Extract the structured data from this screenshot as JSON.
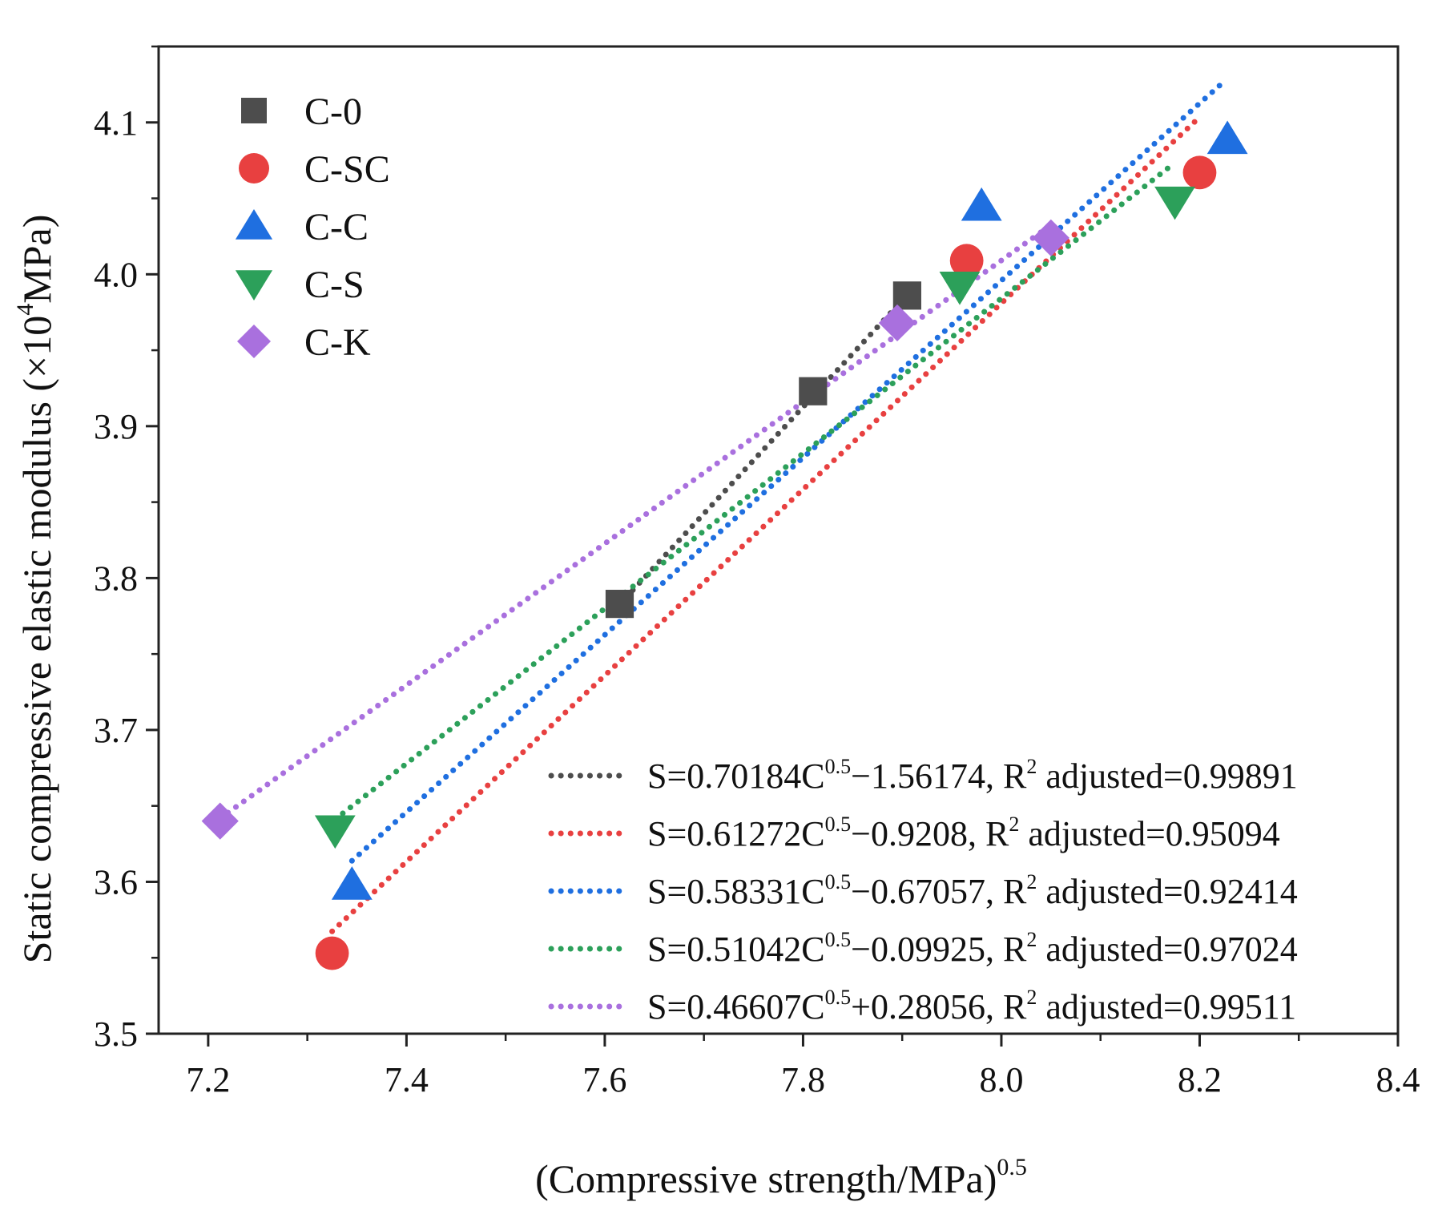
{
  "chart_data": {
    "type": "scatter",
    "xlabel": "(Compressive strength/MPa)",
    "xlabel_sup": "0.5",
    "ylabel": "Static compressive elastic modulus (×10",
    "ylabel_sup": "4",
    "ylabel_tail": "MPa)",
    "xlim": [
      7.15,
      8.4
    ],
    "ylim": [
      3.5,
      4.15
    ],
    "x_ticks": [
      "7.2",
      "7.4",
      "7.6",
      "7.8",
      "8.0",
      "8.2",
      "8.4"
    ],
    "y_ticks": [
      "3.5",
      "3.6",
      "3.7",
      "3.8",
      "3.9",
      "4.0",
      "4.1"
    ],
    "legend_position": "top-left",
    "fit_legend_position": "bottom-right",
    "series": [
      {
        "name": "C-0",
        "marker": "square",
        "color": "#4d4d4d",
        "x": [
          7.615,
          7.81,
          7.905
        ],
        "y": [
          3.783,
          3.923,
          3.986
        ],
        "fit": {
          "slope": 0.70184,
          "intercept": -1.56174,
          "x_range": [
            7.615,
            7.91
          ],
          "pre": "S=0.70184C",
          "sup": "0.5",
          "post": "−1.56174, R",
          "r2_sup": "2",
          "r2_text": " adjusted=0.99891"
        }
      },
      {
        "name": "C-SC",
        "marker": "circle",
        "color": "#e84040",
        "x": [
          7.325,
          7.965,
          8.2
        ],
        "y": [
          3.553,
          4.009,
          4.067
        ],
        "fit": {
          "slope": 0.61272,
          "intercept": -0.9208,
          "x_range": [
            7.325,
            8.2
          ],
          "pre": "S=0.61272C",
          "sup": "0.5",
          "post": "−0.9208, R",
          "r2_sup": "2",
          "r2_text": " adjusted=0.95094"
        }
      },
      {
        "name": "C-C",
        "marker": "triangle-up",
        "color": "#1f6fe0",
        "x": [
          7.345,
          7.98,
          8.228
        ],
        "y": [
          3.598,
          4.045,
          4.089
        ],
        "fit": {
          "slope": 0.58331,
          "intercept": -0.67057,
          "x_range": [
            7.345,
            8.22
          ],
          "pre": "S=0.58331C",
          "sup": "0.5",
          "post": "−0.67057, R",
          "r2_sup": "2",
          "r2_text": " adjusted=0.92414"
        }
      },
      {
        "name": "C-S",
        "marker": "triangle-down",
        "color": "#2ca05a",
        "x": [
          7.328,
          7.958,
          8.175
        ],
        "y": [
          3.634,
          3.992,
          4.048
        ],
        "fit": {
          "slope": 0.51042,
          "intercept": -0.09925,
          "x_range": [
            7.328,
            8.175
          ],
          "pre": "S=0.51042C",
          "sup": "0.5",
          "post": "−0.09925, R",
          "r2_sup": "2",
          "r2_text": " adjusted=0.97024"
        }
      },
      {
        "name": "C-K",
        "marker": "diamond",
        "color": "#a970de",
        "x": [
          7.212,
          7.895,
          8.05
        ],
        "y": [
          3.64,
          3.968,
          4.024
        ],
        "fit": {
          "slope": 0.46607,
          "intercept": 0.28056,
          "x_range": [
            7.212,
            8.05
          ],
          "pre": "S=0.46607C",
          "sup": "0.5",
          "post": "+0.28056, R",
          "r2_sup": "2",
          "r2_text": " adjusted=0.99511"
        }
      }
    ]
  }
}
